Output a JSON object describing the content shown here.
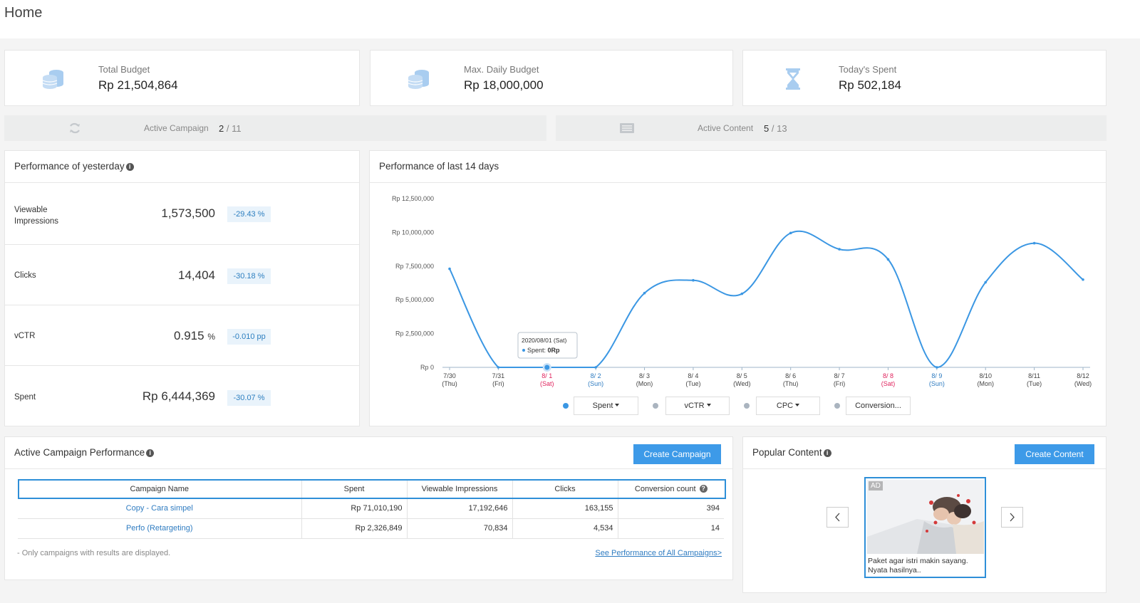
{
  "page": {
    "title": "Home"
  },
  "kpis": [
    {
      "label": "Total Budget",
      "value": "Rp 21,504,864",
      "icon": "coins-icon"
    },
    {
      "label": "Max. Daily Budget",
      "value": "Rp 18,000,000",
      "icon": "coins-icon"
    },
    {
      "label": "Today's Spent",
      "value": "Rp 502,184",
      "icon": "hourglass-icon"
    }
  ],
  "active_campaign": {
    "label": "Active Campaign",
    "active": "2",
    "total": "/ 11"
  },
  "active_content": {
    "label": "Active Content",
    "active": "5",
    "total": "/ 13"
  },
  "yesterday": {
    "title": "Performance of yesterday",
    "rows": [
      {
        "label": "Viewable Impressions",
        "value": "1,573,500",
        "unit": "",
        "change": "-29.43 %"
      },
      {
        "label": "Clicks",
        "value": "14,404",
        "unit": "",
        "change": "-30.18 %"
      },
      {
        "label": "vCTR",
        "value": "0.915",
        "unit": "%",
        "change": "-0.010 pp"
      },
      {
        "label": "Spent",
        "value": "Rp 6,444,369",
        "unit": "",
        "change": "-30.07 %"
      }
    ]
  },
  "chart_panel": {
    "title": "Performance of last 14 days",
    "tooltip": {
      "date": "2020/08/01 (Sat)",
      "series_label": "Spent:",
      "value": "0Rp"
    },
    "legend": [
      {
        "label": "Spent",
        "color": "#3b97e3",
        "has_caret": true
      },
      {
        "label": "vCTR",
        "color": "#aab4bf",
        "has_caret": true
      },
      {
        "label": "CPC",
        "color": "#aab4bf",
        "has_caret": true
      },
      {
        "label": "Conversion...",
        "color": "#aab4bf",
        "has_caret": false
      }
    ]
  },
  "chart_data": {
    "type": "line",
    "categories": [
      {
        "date": "7/30",
        "day": "(Thu)",
        "kind": "weekday"
      },
      {
        "date": "7/31",
        "day": "(Fri)",
        "kind": "weekday"
      },
      {
        "date": "8/ 1",
        "day": "(Sat)",
        "kind": "sat"
      },
      {
        "date": "8/ 2",
        "day": "(Sun)",
        "kind": "sun"
      },
      {
        "date": "8/ 3",
        "day": "(Mon)",
        "kind": "weekday"
      },
      {
        "date": "8/ 4",
        "day": "(Tue)",
        "kind": "weekday"
      },
      {
        "date": "8/ 5",
        "day": "(Wed)",
        "kind": "weekday"
      },
      {
        "date": "8/ 6",
        "day": "(Thu)",
        "kind": "weekday"
      },
      {
        "date": "8/ 7",
        "day": "(Fri)",
        "kind": "weekday"
      },
      {
        "date": "8/ 8",
        "day": "(Sat)",
        "kind": "sat"
      },
      {
        "date": "8/ 9",
        "day": "(Sun)",
        "kind": "sun"
      },
      {
        "date": "8/10",
        "day": "(Mon)",
        "kind": "weekday"
      },
      {
        "date": "8/11",
        "day": "(Tue)",
        "kind": "weekday"
      },
      {
        "date": "8/12",
        "day": "(Wed)",
        "kind": "weekday"
      }
    ],
    "series": [
      {
        "values": [
          7300000,
          0,
          0,
          0,
          5500000,
          6450000,
          5450000,
          9950000,
          8750000,
          8000000,
          0,
          6300000,
          9200000,
          6500000
        ]
      }
    ],
    "yticks": [
      "Rp 0",
      "Rp 2,500,000",
      "Rp 5,000,000",
      "Rp 7,500,000",
      "Rp 10,000,000",
      "Rp 12,500,000"
    ],
    "ylim": [
      0,
      12500000
    ],
    "highlight_index": 2,
    "line_color": "#3b97e3",
    "sat_color": "#e0245e",
    "sun_color": "#2f7cc1",
    "grid": false
  },
  "campaigns": {
    "title": "Active Campaign Performance",
    "create_label": "Create Campaign",
    "columns": [
      "Campaign Name",
      "Spent",
      "Viewable Impressions",
      "Clicks",
      "Conversion count"
    ],
    "rows": [
      {
        "name": "Copy - Cara simpel",
        "spent": "Rp 71,010,190",
        "impressions": "17,192,646",
        "clicks": "163,155",
        "conversions": "394"
      },
      {
        "name": "Perfo (Retargeting)",
        "spent": "Rp 2,326,849",
        "impressions": "70,834",
        "clicks": "4,534",
        "conversions": "14"
      }
    ],
    "note": "- Only campaigns with results are displayed.",
    "see_all": "See Performance of All Campaigns>"
  },
  "popular": {
    "title": "Popular Content",
    "create_label": "Create Content",
    "ad": {
      "badge": "AD",
      "text": "Paket agar istri makin sayang. Nyata hasilnya.."
    }
  }
}
